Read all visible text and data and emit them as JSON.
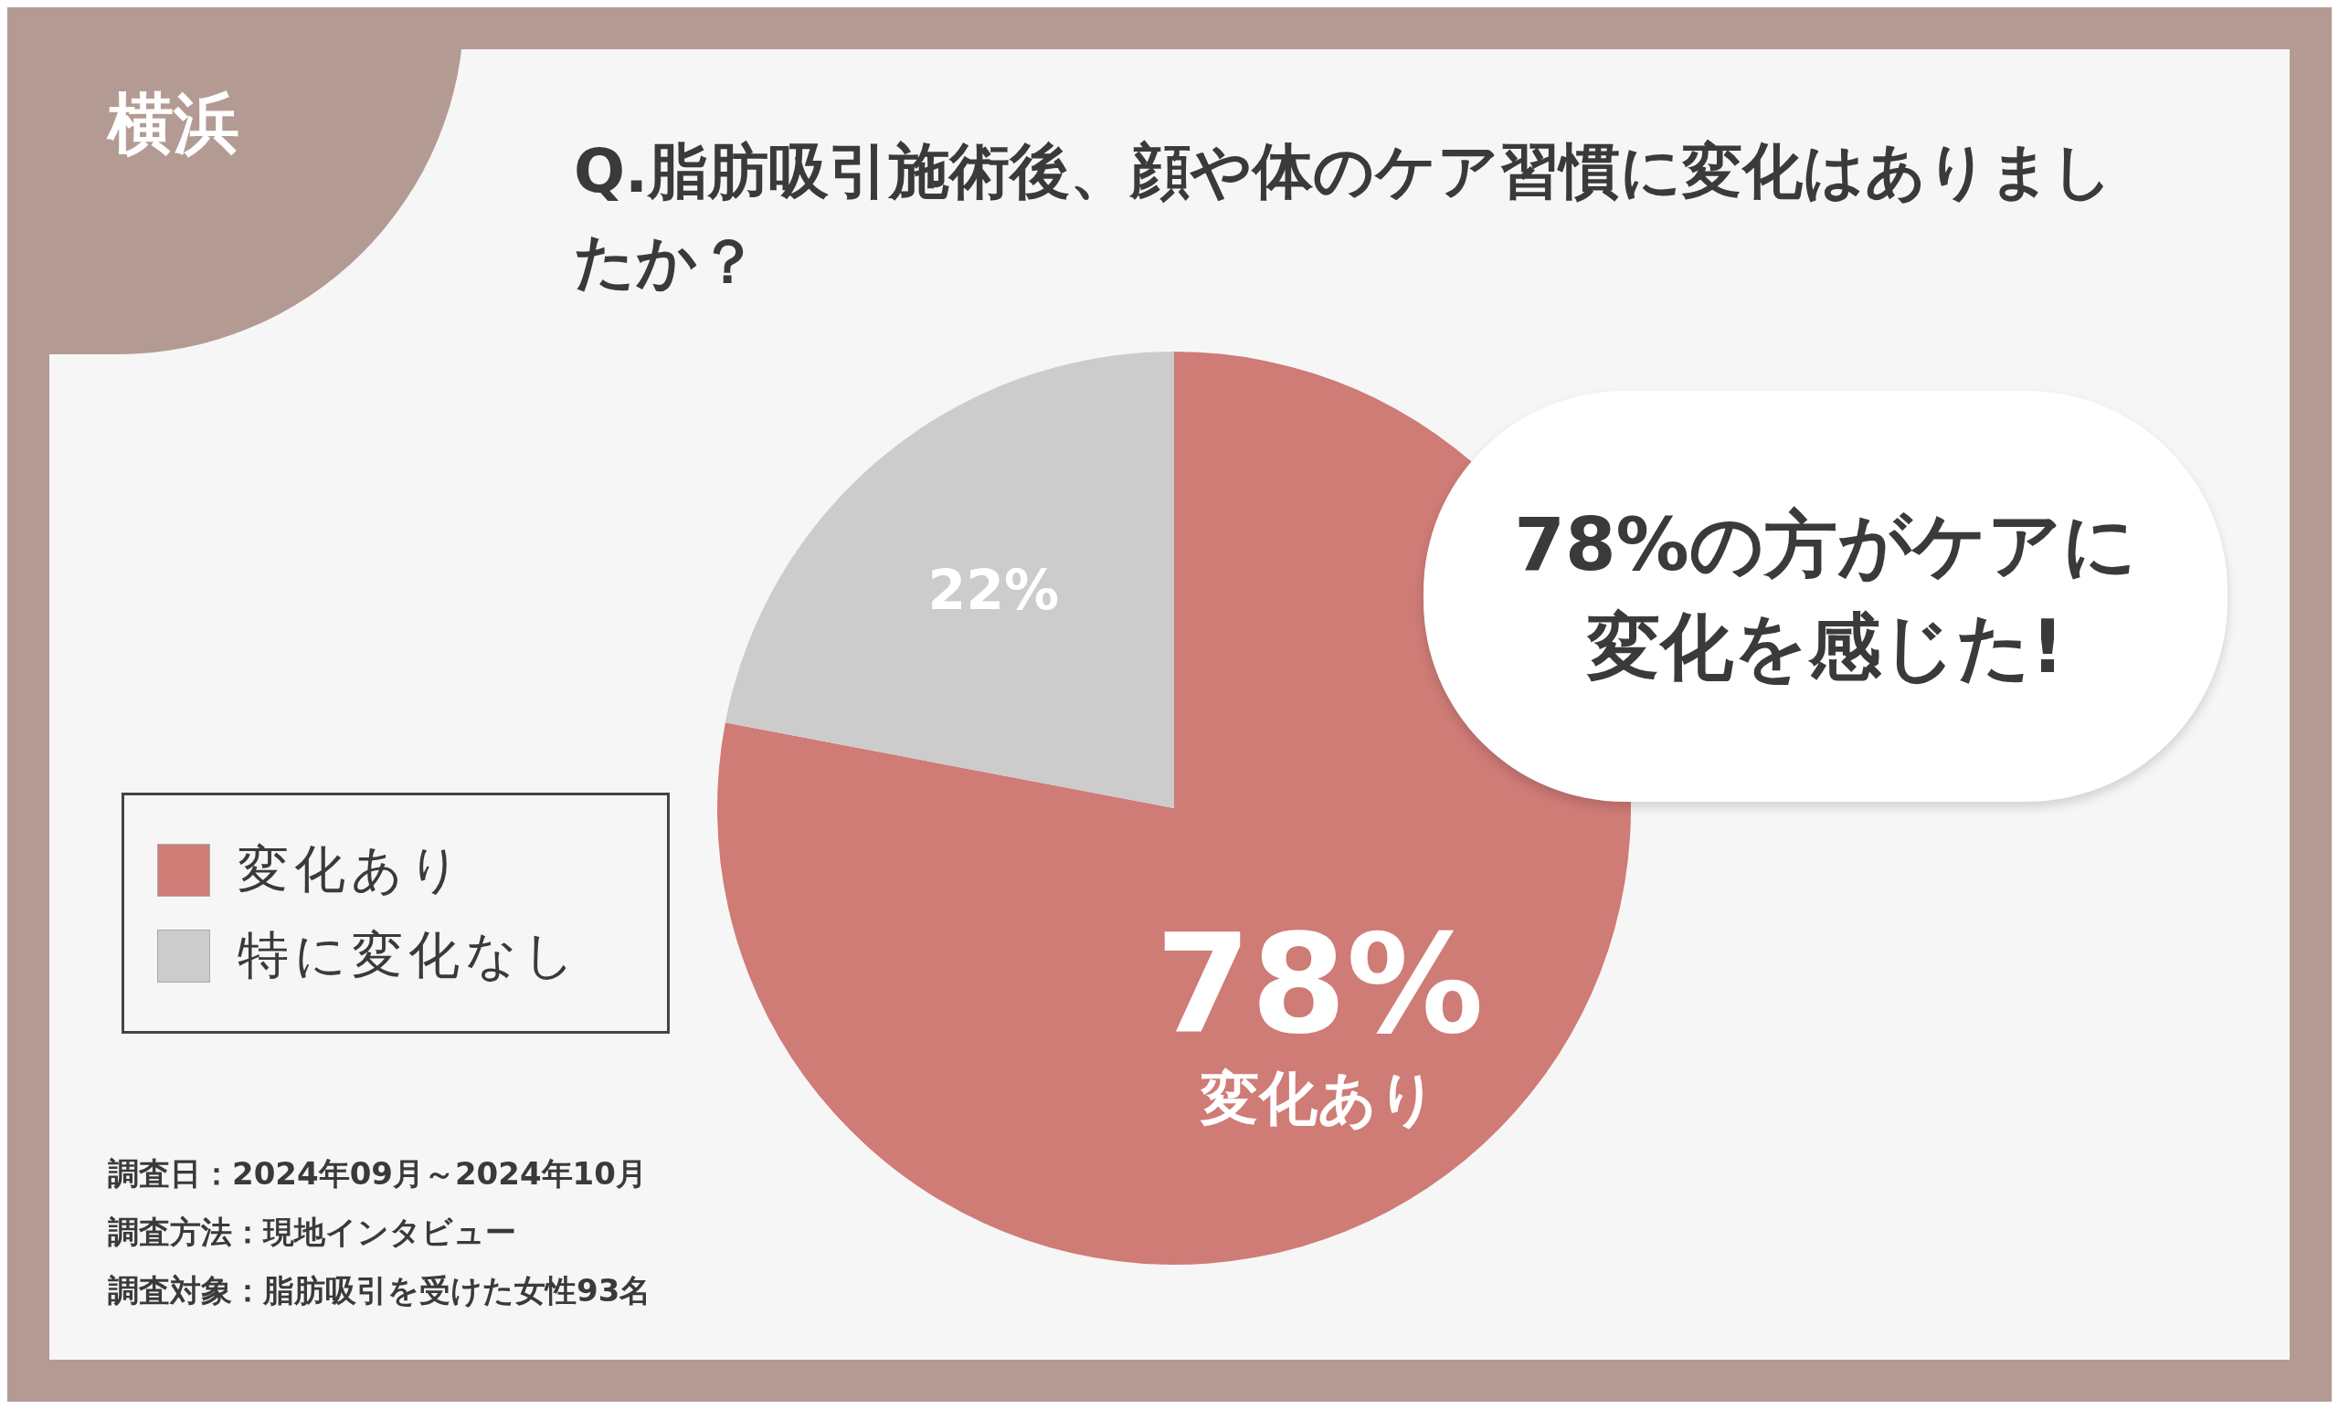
{
  "chart_data": {
    "type": "pie",
    "title": "Q.脂肪吸引施術後、顔や体のケア習慣に変化はありましたか？",
    "subtitle": "横浜",
    "categories": [
      "変化あり",
      "特に変化なし"
    ],
    "values": [
      78,
      22
    ],
    "colors": [
      "#cf7b76",
      "#cccccc"
    ],
    "value_labels": [
      "78%",
      "22%"
    ],
    "legend": "left",
    "annotations": [
      {
        "text": "変化あり",
        "x": "変化あり"
      },
      "78%の方がケアに変化を感じた!",
      "調査日：2024年09月～2024年10月",
      "調査方法：現地インタビュー",
      "調査対象：脂肪吸引を受けた女性93名"
    ]
  }
}
